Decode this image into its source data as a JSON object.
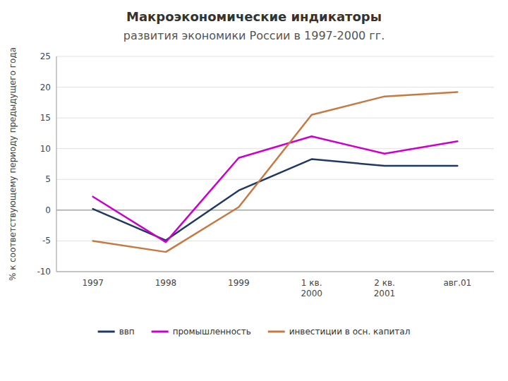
{
  "chart_data": {
    "type": "line",
    "title": "Макроэкономические индикаторы",
    "subtitle": "развития экономики России в 1997-2000 гг.",
    "ylabel": "% к соответствующему периоду предыдущего года",
    "categories": [
      "1997",
      "1998",
      "1999",
      "1 кв.\n2000",
      "2 кв.\n2001",
      "авг.01"
    ],
    "series": [
      {
        "name": "ввп",
        "color": "#1F3864",
        "values": [
          0.2,
          -4.9,
          3.2,
          8.3,
          7.2,
          7.2
        ]
      },
      {
        "name": "промышленность",
        "color": "#CC00CC",
        "values": [
          2.2,
          -5.2,
          8.5,
          12.0,
          9.2,
          11.2
        ]
      },
      {
        "name": "инвестиции в осн. капитал",
        "color": "#C87941",
        "values": [
          -5.0,
          -6.8,
          0.5,
          15.5,
          18.5,
          19.2
        ]
      }
    ],
    "ylim": [
      -10,
      25
    ],
    "yticks": [
      -10,
      -5,
      0,
      5,
      10,
      15,
      20,
      25
    ],
    "grid": true,
    "legend": "bottom"
  }
}
